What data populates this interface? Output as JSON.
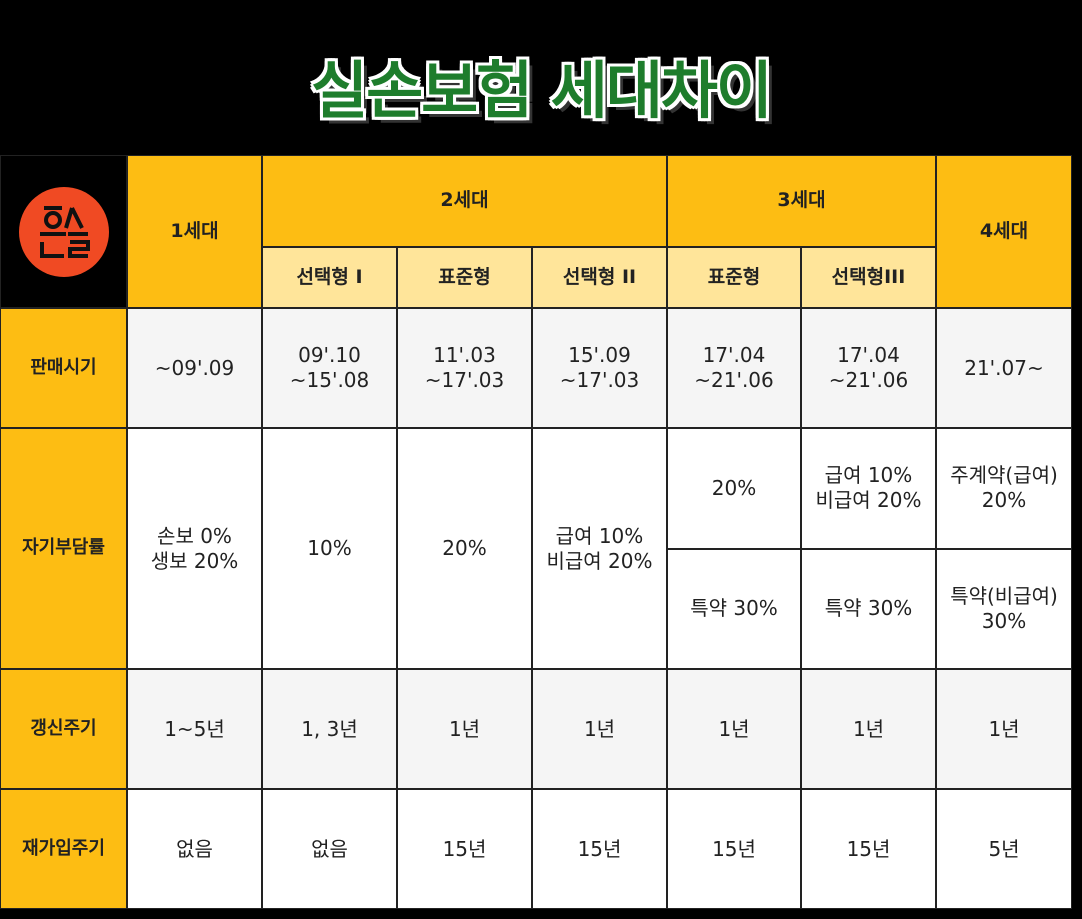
{
  "title": "실손보험 세대차이",
  "table": {
    "generations": [
      "1세대",
      "2세대",
      "3세대",
      "4세대"
    ],
    "subtypes": [
      "선택형 I",
      "표준형",
      "선택형 II",
      "표준형",
      "선택형III"
    ],
    "rows": [
      {
        "label": "판매시기",
        "cells": [
          "~09'.09",
          "09'.10\n~15'.08",
          "11'.03\n~17'.03",
          "15'.09\n~17'.03",
          "17'.04\n~21'.06",
          "17'.04\n~21'.06",
          "21'.07~"
        ]
      },
      {
        "label": "자기부담률",
        "cells": [
          "손보 0%\n생보 20%",
          "10%",
          "20%",
          "급여 10%\n비급여 20%",
          [
            "20%",
            "특약 30%"
          ],
          [
            "급여 10%\n비급여 20%",
            "특약 30%"
          ],
          [
            "주계약(급여)\n20%",
            "특약(비급여)\n30%"
          ]
        ]
      },
      {
        "label": "갱신주기",
        "cells": [
          "1~5년",
          "1, 3년",
          "1년",
          "1년",
          "1년",
          "1년",
          "1년"
        ]
      },
      {
        "label": "재가입주기",
        "cells": [
          "없음",
          "없음",
          "15년",
          "15년",
          "15년",
          "15년",
          "5년"
        ]
      }
    ]
  }
}
